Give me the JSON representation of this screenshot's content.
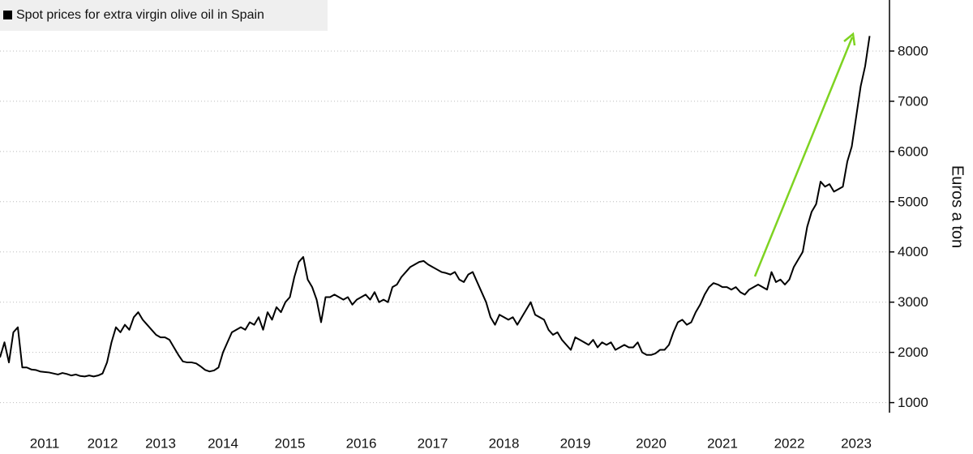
{
  "chart_data": {
    "type": "line",
    "ylabel": "Euros a ton",
    "ylim": [
      800,
      9000
    ],
    "yticks": [
      1000,
      2000,
      3000,
      4000,
      5000,
      6000,
      7000,
      8000
    ],
    "grid": true,
    "legend": "top-left",
    "categories": [
      null,
      null,
      null,
      null,
      null,
      null,
      null,
      null,
      null,
      null,
      "2011",
      null,
      null,
      null,
      null,
      null,
      null,
      null,
      null,
      null,
      null,
      null,
      null,
      "2012",
      null,
      null,
      null,
      null,
      null,
      null,
      null,
      null,
      null,
      null,
      null,
      null,
      "2013",
      null,
      null,
      null,
      null,
      null,
      null,
      null,
      null,
      null,
      null,
      null,
      null,
      null,
      "2014",
      null,
      null,
      null,
      null,
      null,
      null,
      null,
      null,
      null,
      null,
      null,
      null,
      null,
      null,
      "2015",
      null,
      null,
      null,
      null,
      null,
      null,
      null,
      null,
      null,
      null,
      null,
      null,
      null,
      null,
      null,
      "2016",
      null,
      null,
      null,
      null,
      null,
      null,
      null,
      null,
      null,
      null,
      null,
      null,
      null,
      null,
      null,
      "2017",
      null,
      null,
      null,
      null,
      null,
      null,
      null,
      null,
      null,
      null,
      null,
      null,
      null,
      null,
      null,
      "2018",
      null,
      null,
      null,
      null,
      null,
      null,
      null,
      null,
      null,
      null,
      null,
      null,
      null,
      null,
      null,
      "2019",
      null,
      null,
      null,
      null,
      null,
      null,
      null,
      null,
      null,
      null,
      null,
      null,
      null,
      null,
      null,
      null,
      "2020",
      null,
      null,
      null,
      null,
      null,
      null,
      null,
      null,
      null,
      null,
      null,
      null,
      null,
      null,
      null,
      "2021",
      null,
      null,
      null,
      null,
      null,
      null,
      null,
      null,
      null,
      null,
      null,
      null,
      null,
      null,
      "2022",
      null,
      null,
      null,
      null,
      null,
      null,
      null,
      null,
      null,
      null,
      null,
      null,
      null,
      null,
      "2023",
      null,
      null,
      null
    ],
    "series": [
      {
        "name": "Spot prices for extra virgin olive oil in Spain",
        "color": "#000000",
        "values": [
          1900,
          2200,
          1800,
          2400,
          2500,
          1700,
          1700,
          1660,
          1650,
          1620,
          1610,
          1600,
          1580,
          1560,
          1590,
          1570,
          1540,
          1560,
          1530,
          1520,
          1540,
          1520,
          1540,
          1580,
          1800,
          2200,
          2500,
          2400,
          2550,
          2450,
          2700,
          2800,
          2650,
          2550,
          2450,
          2350,
          2300,
          2300,
          2250,
          2100,
          1950,
          1820,
          1800,
          1800,
          1780,
          1720,
          1650,
          1620,
          1640,
          1700,
          2000,
          2200,
          2400,
          2450,
          2500,
          2450,
          2600,
          2550,
          2700,
          2450,
          2800,
          2650,
          2900,
          2800,
          3000,
          3100,
          3500,
          3800,
          3900,
          3450,
          3300,
          3050,
          2600,
          3100,
          3100,
          3150,
          3100,
          3050,
          3100,
          2950,
          3050,
          3100,
          3150,
          3050,
          3200,
          3000,
          3050,
          3000,
          3300,
          3350,
          3500,
          3600,
          3700,
          3750,
          3800,
          3820,
          3750,
          3700,
          3650,
          3600,
          3580,
          3550,
          3600,
          3450,
          3400,
          3550,
          3600,
          3400,
          3200,
          3000,
          2700,
          2550,
          2750,
          2700,
          2650,
          2700,
          2550,
          2700,
          2850,
          3000,
          2750,
          2700,
          2650,
          2450,
          2350,
          2400,
          2250,
          2150,
          2050,
          2300,
          2250,
          2200,
          2150,
          2250,
          2100,
          2200,
          2150,
          2200,
          2050,
          2100,
          2150,
          2100,
          2100,
          2200,
          2000,
          1950,
          1950,
          1980,
          2050,
          2050,
          2150,
          2400,
          2600,
          2650,
          2550,
          2600,
          2800,
          2950,
          3150,
          3300,
          3380,
          3350,
          3300,
          3300,
          3250,
          3300,
          3200,
          3150,
          3250,
          3300,
          3350,
          3300,
          3250,
          3600,
          3400,
          3450,
          3350,
          3450,
          3700,
          3850,
          4000,
          4500,
          4800,
          4950,
          5400,
          5300,
          5350,
          5200,
          5250,
          5300,
          5800,
          6100,
          6700,
          7300,
          7700,
          8300
        ]
      }
    ]
  }
}
